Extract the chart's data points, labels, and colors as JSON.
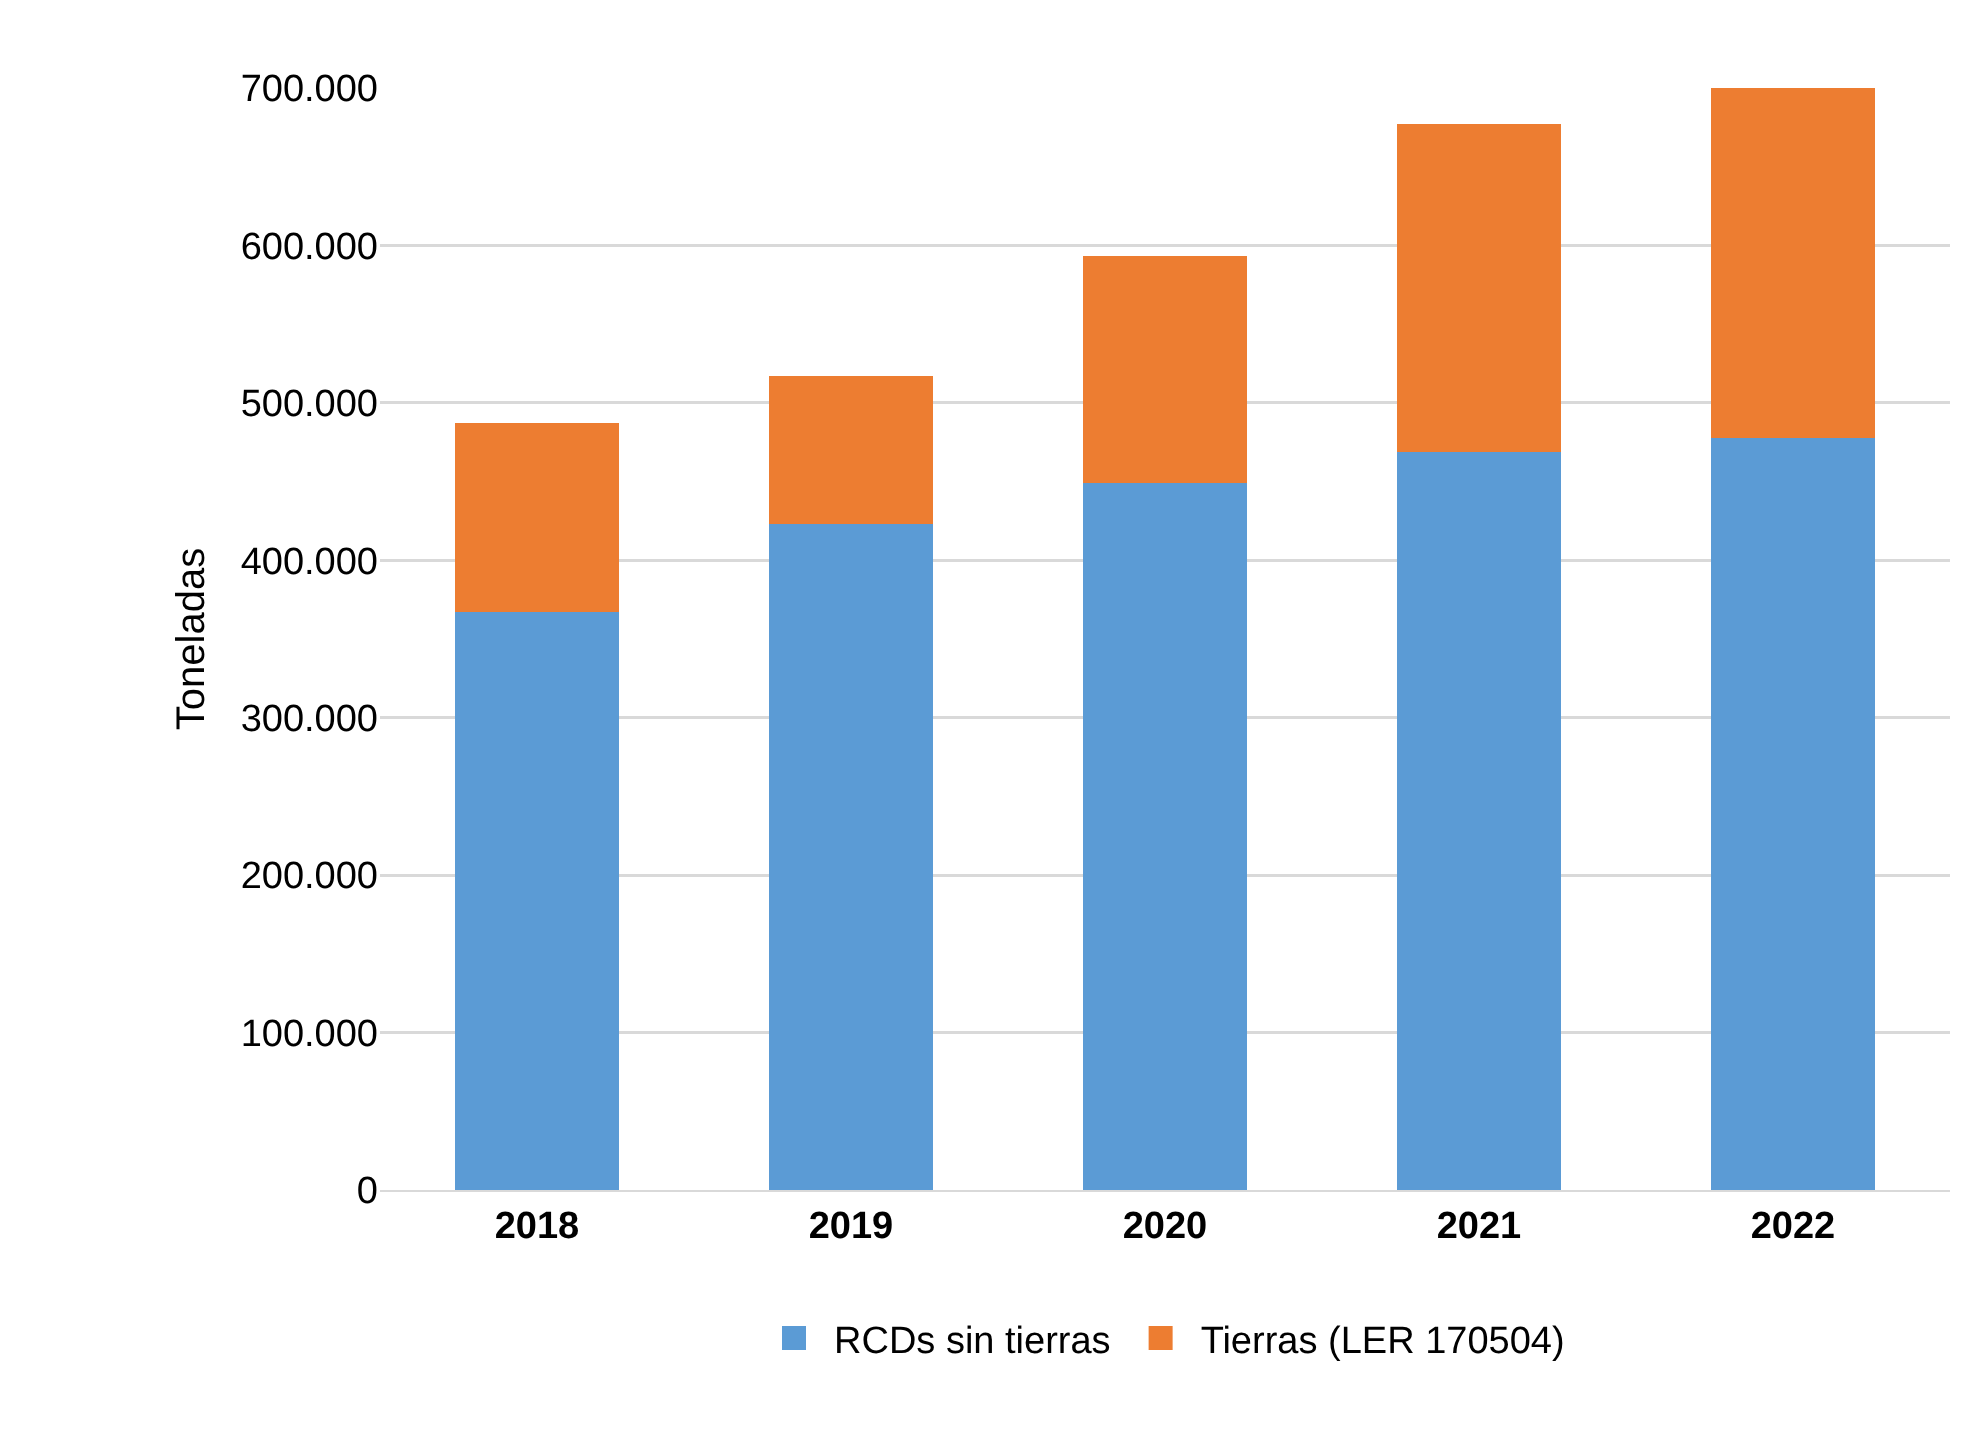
{
  "chart_data": {
    "type": "bar",
    "stacked": true,
    "ylabel": "Toneladas",
    "categories": [
      "2018",
      "2019",
      "2020",
      "2021",
      "2022"
    ],
    "series": [
      {
        "name": "RCDs sin tierras",
        "color": "#5b9bd5",
        "values": [
          367000,
          423000,
          449000,
          469000,
          478000
        ]
      },
      {
        "name": "Tierras (LER 170504)",
        "color": "#ed7d31",
        "values": [
          120000,
          94000,
          144000,
          208000,
          222000
        ]
      }
    ],
    "ylim": [
      0,
      700000
    ],
    "yticks": [
      0,
      {
        "value": 100000,
        "label": "100.000"
      },
      {
        "value": 200000,
        "label": "200.000"
      },
      {
        "value": 300000,
        "label": "300.000"
      },
      {
        "value": 400000,
        "label": "400.000"
      },
      {
        "value": 500000,
        "label": "500.000"
      },
      {
        "value": 600000,
        "label": "600.000"
      },
      {
        "value": 700000,
        "label": "700.000"
      }
    ],
    "grid": "y",
    "legend": "bottom"
  }
}
